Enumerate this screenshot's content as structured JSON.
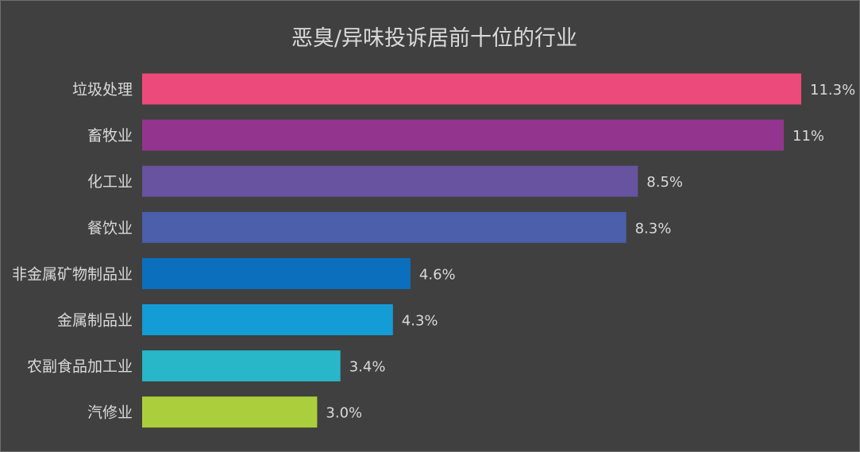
{
  "chart_data": {
    "type": "bar",
    "orientation": "horizontal",
    "title": "恶臭/异味投诉居前十位的行业",
    "xlabel": "",
    "ylabel": "",
    "categories": [
      "垃圾处理",
      "畜牧业",
      "化工业",
      "餐饮业",
      "非金属矿物制品业",
      "金属制品业",
      "农副食品加工业",
      "汽修业"
    ],
    "values": [
      11.3,
      11,
      8.5,
      8.3,
      4.6,
      4.3,
      3.4,
      3.0
    ],
    "value_labels": [
      "11.3%",
      "11%",
      "8.5%",
      "8.3%",
      "4.6%",
      "4.3%",
      "3.4%",
      "3.0%"
    ],
    "colors": [
      "#ec4a7a",
      "#93358e",
      "#67539f",
      "#4b5fab",
      "#0b6fbe",
      "#149cd6",
      "#27b7c8",
      "#abcf3c"
    ],
    "xlim": [
      0,
      11.3
    ],
    "grid": false,
    "legend": "none"
  },
  "theme": {
    "background": "#404040",
    "text_color": "#d9d9d9"
  }
}
